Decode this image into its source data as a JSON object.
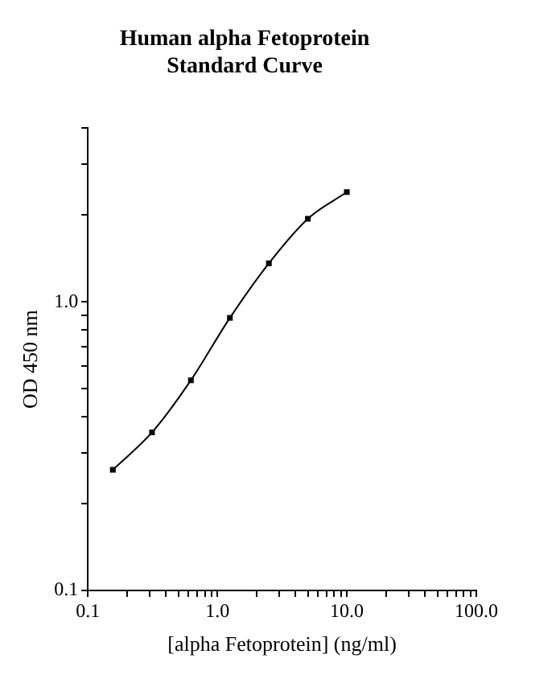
{
  "chart_data": {
    "type": "line",
    "title": "Human alpha Fetoprotein\nStandard Curve",
    "xlabel": "[alpha Fetoprotein] (ng/ml)",
    "ylabel": "OD 450 nm",
    "x": [
      0.156,
      0.313,
      0.625,
      1.25,
      2.5,
      5,
      10
    ],
    "series": [
      {
        "color": "#000000",
        "values": [
          0.262,
          0.353,
          0.535,
          0.88,
          1.36,
          1.94,
          2.4
        ]
      }
    ],
    "log": "xy",
    "xlim": [
      0.1,
      100
    ],
    "ylim": [
      0.1,
      4
    ],
    "xticks": [
      {
        "value": 0.1,
        "label": "0.1"
      },
      {
        "value": 0.2,
        "label": null
      },
      {
        "value": 0.3,
        "label": null
      },
      {
        "value": 0.4,
        "label": null
      },
      {
        "value": 0.5,
        "label": null
      },
      {
        "value": 0.6,
        "label": null
      },
      {
        "value": 0.7,
        "label": null
      },
      {
        "value": 0.8,
        "label": null
      },
      {
        "value": 0.9,
        "label": null
      },
      {
        "value": 1,
        "label": "1.0"
      },
      {
        "value": 2,
        "label": null
      },
      {
        "value": 3,
        "label": null
      },
      {
        "value": 4,
        "label": null
      },
      {
        "value": 5,
        "label": null
      },
      {
        "value": 6,
        "label": null
      },
      {
        "value": 7,
        "label": null
      },
      {
        "value": 8,
        "label": null
      },
      {
        "value": 9,
        "label": null
      },
      {
        "value": 10,
        "label": "10.0"
      },
      {
        "value": 20,
        "label": null
      },
      {
        "value": 30,
        "label": null
      },
      {
        "value": 40,
        "label": null
      },
      {
        "value": 50,
        "label": null
      },
      {
        "value": 60,
        "label": null
      },
      {
        "value": 70,
        "label": null
      },
      {
        "value": 80,
        "label": null
      },
      {
        "value": 90,
        "label": null
      },
      {
        "value": 100,
        "label": "100.0"
      }
    ],
    "yticks": [
      {
        "value": 0.1,
        "label": "0.1"
      },
      {
        "value": 0.2,
        "label": null
      },
      {
        "value": 0.3,
        "label": null
      },
      {
        "value": 0.4,
        "label": null
      },
      {
        "value": 0.5,
        "label": null
      },
      {
        "value": 0.6,
        "label": null
      },
      {
        "value": 0.7,
        "label": null
      },
      {
        "value": 0.8,
        "label": null
      },
      {
        "value": 0.9,
        "label": null
      },
      {
        "value": 1,
        "label": "1.0"
      },
      {
        "value": 2,
        "label": null
      },
      {
        "value": 3,
        "label": null
      },
      {
        "value": 4,
        "label": null
      }
    ],
    "grid": false,
    "legend": false,
    "marker": "square",
    "line_style": "solid"
  }
}
